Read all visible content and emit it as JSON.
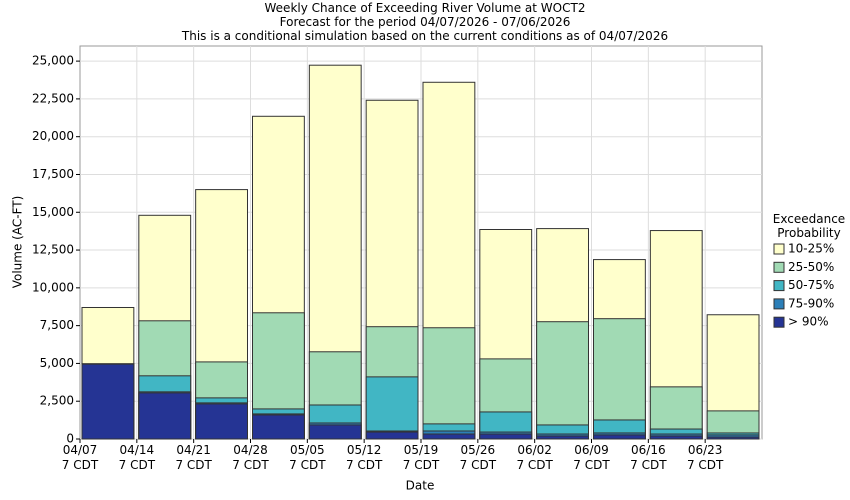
{
  "chart_data": {
    "type": "bar",
    "title": "Weekly Chance of Exceeding River Volume at WOCT2",
    "subtitles": [
      "Forecast for the period 04/07/2026 - 07/06/2026",
      "This is a conditional simulation based on the current conditions as of 04/07/2026"
    ],
    "x_label": "Date",
    "y_label": "Volume (AC-FT)",
    "categories": [
      "04/07\n7 CDT",
      "04/14\n7 CDT",
      "04/21\n7 CDT",
      "04/28\n7 CDT",
      "05/05\n7 CDT",
      "05/12\n7 CDT",
      "05/19\n7 CDT",
      "05/26\n7 CDT",
      "06/02\n7 CDT",
      "06/09\n7 CDT",
      "06/16\n7 CDT",
      "06/23\n7 CDT"
    ],
    "legend_title": "Exceedance Probability",
    "series": [
      {
        "name": "10-25%",
        "color": "#ffffcc",
        "values": [
          8700,
          14800,
          16500,
          21350,
          24730,
          22410,
          23600,
          13860,
          13920,
          11870,
          13790,
          8220
        ]
      },
      {
        "name": "25-50%",
        "color": "#a1dab4",
        "values": [
          4980,
          7820,
          5100,
          8350,
          5770,
          7430,
          7360,
          5300,
          7760,
          7960,
          3450,
          1860
        ]
      },
      {
        "name": "50-75%",
        "color": "#41b6c4",
        "values": [
          4970,
          4180,
          2720,
          1990,
          2250,
          4110,
          1000,
          1790,
          930,
          1260,
          660,
          400
        ]
      },
      {
        "name": "75-90%",
        "color": "#2c7fb8",
        "values": [
          4960,
          3120,
          2390,
          1660,
          1060,
          530,
          530,
          460,
          330,
          400,
          330,
          270
        ]
      },
      {
        "name": "> 90%",
        "color": "#253494",
        "values": [
          4950,
          3050,
          2320,
          1590,
          930,
          460,
          330,
          330,
          200,
          270,
          200,
          130
        ]
      }
    ],
    "ylim": [
      0,
      26000
    ],
    "yticks": [
      0,
      {
        "value": 2500,
        "label": "2,500"
      },
      {
        "value": 5000,
        "label": "5,000"
      },
      {
        "value": 7500,
        "label": "7,500"
      },
      {
        "value": 10000,
        "label": "10,000"
      },
      {
        "value": 12500,
        "label": "12,500"
      },
      {
        "value": 15000,
        "label": "15,000"
      },
      {
        "value": 17500,
        "label": "17,500"
      },
      {
        "value": 20000,
        "label": "20,000"
      },
      {
        "value": 22500,
        "label": "22,500"
      },
      {
        "value": 25000,
        "label": "25,000"
      }
    ],
    "grid": true
  }
}
